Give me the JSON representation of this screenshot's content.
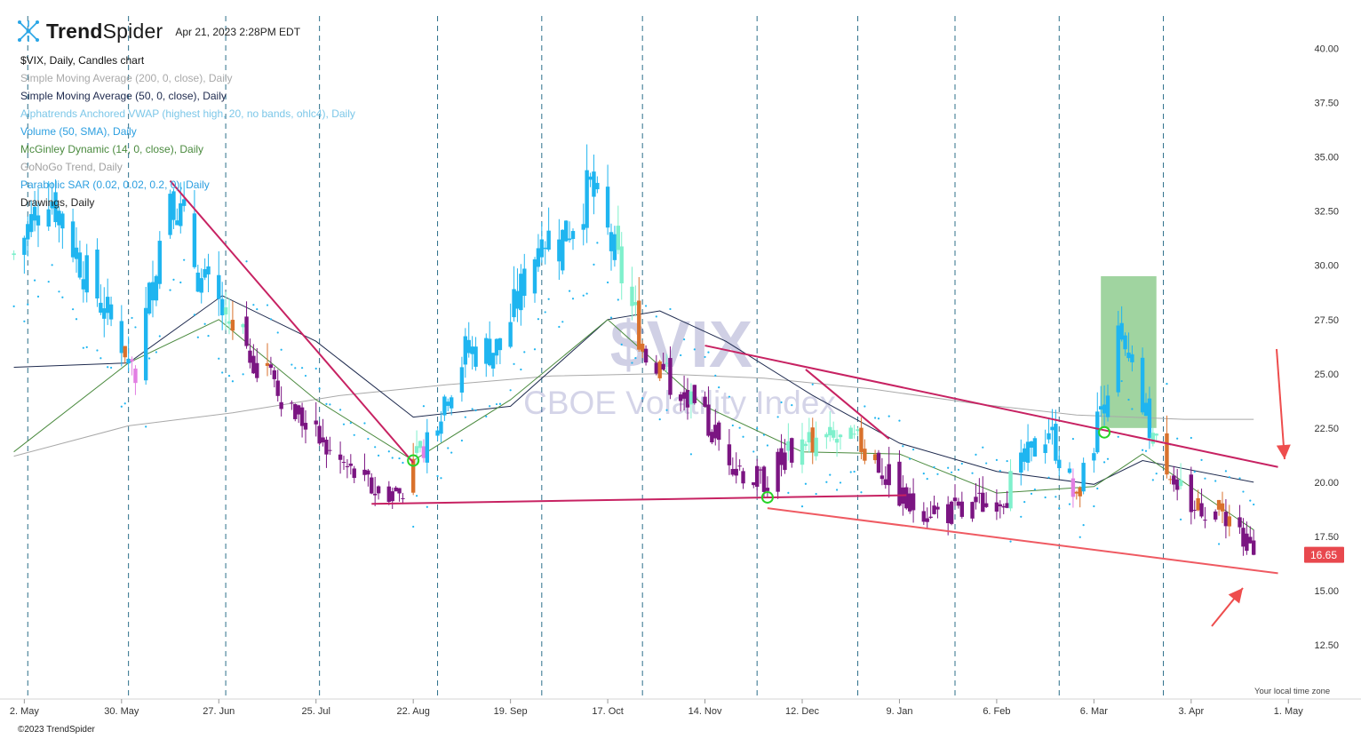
{
  "header": {
    "logo_bold": "Trend",
    "logo_light": "Spider",
    "timestamp": "Apr 21, 2023 2:28PM EDT"
  },
  "legend": {
    "title": "$VIX, Daily, Candles chart",
    "items": [
      {
        "label": "Simple Moving Average (200, 0, close), Daily",
        "color": "#a9a9a9"
      },
      {
        "label": "Simple Moving Average (50, 0, close), Daily",
        "color": "#1e2a4e"
      },
      {
        "label": "Alphatrends Anchored VWAP (highest high, 20, no bands, ohlc4), Daily",
        "color": "#7cc7e8"
      },
      {
        "label": "Volume (50, SMA), Daily",
        "color": "#2c9fe0"
      },
      {
        "label": "McGinley Dynamic (14, 0, close), Daily",
        "color": "#4a8a3e"
      },
      {
        "label": "GoNoGo Trend, Daily",
        "color": "#a0a0a0"
      },
      {
        "label": "Parabolic SAR (0.02, 0.02, 0.2, 0), Daily",
        "color": "#2c9fe0"
      },
      {
        "label": "Drawings, Daily",
        "color": "#222222"
      }
    ]
  },
  "watermark": {
    "symbol": "$VIX",
    "name": "CBOE Volatility Index"
  },
  "price_badge": {
    "value": "16.65",
    "color": "#e8484e"
  },
  "footer": {
    "copyright": "©2023 TrendSpider",
    "timezone_note": "Your local time zone"
  },
  "colors": {
    "gonogo_strong_down": "#7b1582",
    "gonogo_weak_down": "#e27fe3",
    "gonogo_strong_up": "#1fb5f0",
    "gonogo_weak_up": "#7ff0cc",
    "gonogo_neutral": "#d9712c",
    "trendline": "#c72262",
    "channel_line": "#ef5a62",
    "arrow": "#ee4d4d",
    "highlight_box": "#7cc37c",
    "signal_circle": "#27d327"
  },
  "chart_data": {
    "type": "candlestick",
    "symbol": "$VIX",
    "timeframe": "Daily",
    "y_axis": {
      "ticks": [
        12.5,
        15.0,
        17.5,
        20.0,
        22.5,
        25.0,
        27.5,
        30.0,
        32.5,
        35.0,
        37.5,
        40.0
      ],
      "range": [
        10.0,
        41.5
      ]
    },
    "x_axis": {
      "ticks": [
        "2. May",
        "30. May",
        "27. Jun",
        "25. Jul",
        "22. Aug",
        "19. Sep",
        "17. Oct",
        "14. Nov",
        "12. Dec",
        "9. Jan",
        "6. Feb",
        "6. Mar",
        "3. Apr",
        "1. May"
      ]
    },
    "last_price": 16.65,
    "price_path": [
      [
        "2022-04-29",
        30.5
      ],
      [
        "2022-05-09",
        33.5
      ],
      [
        "2022-05-20",
        29.5
      ],
      [
        "2022-05-31",
        26.2
      ],
      [
        "2022-06-03",
        25.0
      ],
      [
        "2022-06-13",
        33.8
      ],
      [
        "2022-06-22",
        29.2
      ],
      [
        "2022-07-01",
        27.2
      ],
      [
        "2022-07-15",
        24.2
      ],
      [
        "2022-07-29",
        21.3
      ],
      [
        "2022-08-10",
        19.7
      ],
      [
        "2022-08-18",
        19.5
      ],
      [
        "2022-08-25",
        21.8
      ],
      [
        "2022-09-06",
        26.0
      ],
      [
        "2022-09-16",
        26.2
      ],
      [
        "2022-09-28",
        31.5
      ],
      [
        "2022-10-03",
        31.0
      ],
      [
        "2022-10-12",
        33.6
      ],
      [
        "2022-10-20",
        30.0
      ],
      [
        "2022-10-28",
        26.0
      ],
      [
        "2022-11-10",
        23.5
      ],
      [
        "2022-11-25",
        20.5
      ],
      [
        "2022-11-30",
        20.0
      ],
      [
        "2022-12-13",
        22.0
      ],
      [
        "2022-12-30",
        21.7
      ],
      [
        "2023-01-11",
        19.0
      ],
      [
        "2023-01-27",
        18.5
      ],
      [
        "2023-02-08",
        19.5
      ],
      [
        "2023-02-21",
        22.5
      ],
      [
        "2023-03-01",
        19.0
      ],
      [
        "2023-03-13",
        26.5
      ],
      [
        "2023-03-24",
        21.7
      ],
      [
        "2023-04-03",
        19.0
      ],
      [
        "2023-04-13",
        18.5
      ],
      [
        "2023-04-21",
        16.65
      ]
    ],
    "overlays": {
      "sma_200": [
        [
          "2022-04-29",
          21.2
        ],
        [
          "2022-06-01",
          22.6
        ],
        [
          "2022-07-01",
          23.2
        ],
        [
          "2022-08-01",
          24.0
        ],
        [
          "2022-09-01",
          24.5
        ],
        [
          "2022-10-01",
          24.9
        ],
        [
          "2022-11-01",
          25.0
        ],
        [
          "2022-12-01",
          24.8
        ],
        [
          "2023-01-01",
          24.3
        ],
        [
          "2023-02-01",
          23.6
        ],
        [
          "2023-03-01",
          23.1
        ],
        [
          "2023-04-01",
          22.9
        ],
        [
          "2023-04-21",
          22.9
        ]
      ],
      "sma_50": [
        [
          "2022-04-29",
          25.3
        ],
        [
          "2022-06-01",
          25.5
        ],
        [
          "2022-06-28",
          28.6
        ],
        [
          "2022-07-25",
          26.5
        ],
        [
          "2022-08-22",
          23.0
        ],
        [
          "2022-09-19",
          23.5
        ],
        [
          "2022-10-17",
          27.5
        ],
        [
          "2022-11-01",
          27.9
        ],
        [
          "2022-11-20",
          26.5
        ],
        [
          "2022-12-15",
          24.0
        ],
        [
          "2023-01-09",
          21.8
        ],
        [
          "2023-02-06",
          20.5
        ],
        [
          "2023-03-06",
          19.9
        ],
        [
          "2023-03-20",
          21.0
        ],
        [
          "2023-04-21",
          20.0
        ]
      ],
      "mcginley_14": [
        [
          "2022-04-29",
          21.4
        ],
        [
          "2022-06-01",
          25.5
        ],
        [
          "2022-06-27",
          27.5
        ],
        [
          "2022-07-25",
          23.8
        ],
        [
          "2022-08-22",
          21.0
        ],
        [
          "2022-09-19",
          23.8
        ],
        [
          "2022-10-17",
          27.5
        ],
        [
          "2022-11-14",
          23.5
        ],
        [
          "2022-12-12",
          21.4
        ],
        [
          "2023-01-09",
          21.3
        ],
        [
          "2023-02-06",
          19.5
        ],
        [
          "2023-03-06",
          19.8
        ],
        [
          "2023-03-20",
          21.3
        ],
        [
          "2023-04-21",
          17.8
        ]
      ],
      "trendlines": [
        {
          "from": [
            "2022-06-13",
            33.9
          ],
          "to": [
            "2022-08-22",
            20.9
          ]
        },
        {
          "from": [
            "2022-08-10",
            19.0
          ],
          "to": [
            "2023-01-11",
            19.4
          ]
        },
        {
          "from": [
            "2022-11-14",
            26.3
          ],
          "to": [
            "2023-04-28",
            20.7
          ]
        },
        {
          "from": [
            "2022-12-13",
            25.2
          ],
          "to": [
            "2023-01-06",
            22.0
          ]
        }
      ],
      "channel_line": {
        "from": [
          "2022-12-02",
          18.8
        ],
        "to": [
          "2023-04-28",
          15.8
        ]
      },
      "signal_points": [
        [
          "2022-08-22",
          21.0
        ],
        [
          "2022-12-02",
          19.3
        ],
        [
          "2023-03-09",
          22.3
        ]
      ],
      "highlight_box": {
        "from": [
          "2023-03-08",
          29.5
        ],
        "to": [
          "2023-03-24",
          22.5
        ]
      }
    }
  }
}
